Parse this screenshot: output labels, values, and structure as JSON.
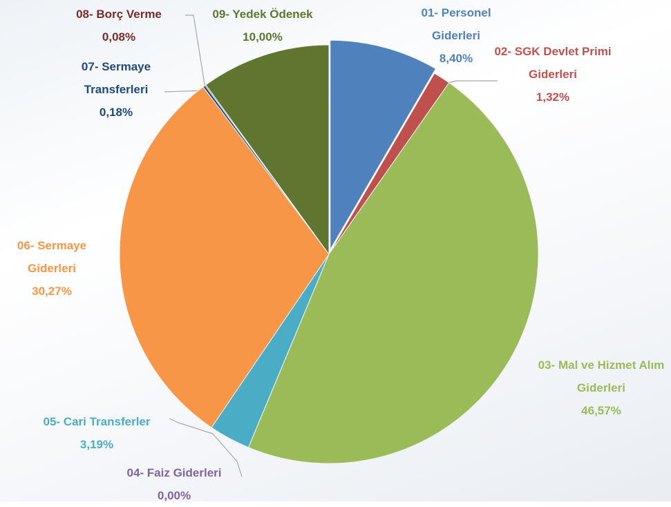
{
  "chart_data": {
    "type": "pie",
    "categories": [
      "01- Personel Giderleri",
      "02- SGK Devlet Primi Giderleri",
      "03- Mal ve Hizmet Alım Giderleri",
      "04- Faiz Giderleri",
      "05- Cari Transferler",
      "06- Sermaye Giderleri",
      "07- Sermaye Transferleri",
      "08- Borç Verme",
      "09- Yedek Ödenek"
    ],
    "values": [
      8.4,
      1.32,
      46.57,
      0.0,
      3.19,
      30.27,
      0.18,
      0.08,
      10.0
    ],
    "value_labels": [
      "8,40%",
      "1,32%",
      "46,57%",
      "0,00%",
      "3,19%",
      "30,27%",
      "0,18%",
      "0,08%",
      "10,00%"
    ],
    "colors": [
      "#4f81bd",
      "#c0504d",
      "#9bbb59",
      "#8064a2",
      "#4bacc6",
      "#f79646",
      "#1f497d",
      "#772c2a",
      "#5f7530"
    ]
  }
}
